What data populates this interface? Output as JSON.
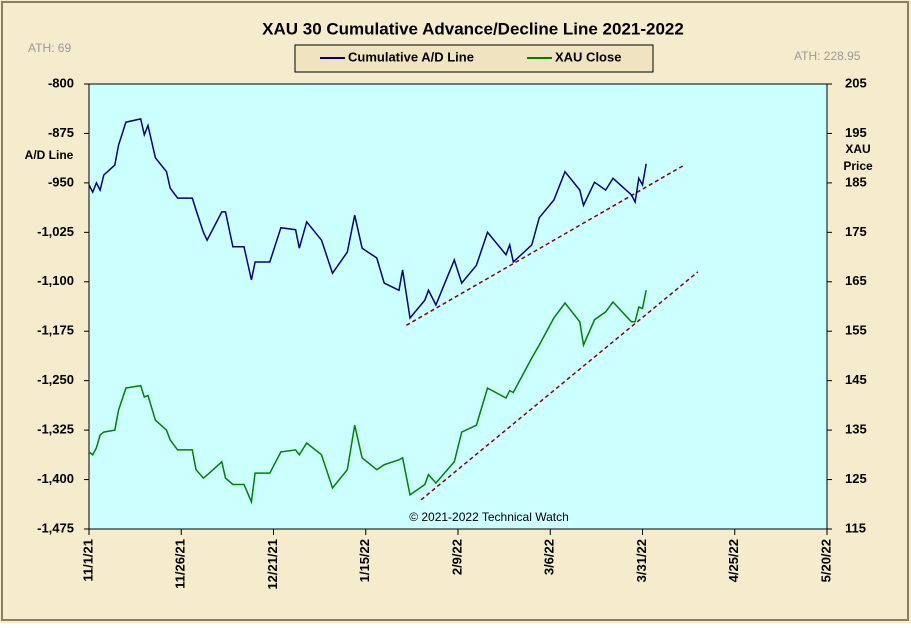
{
  "chart_data": {
    "type": "line",
    "title": "XAU 30 Cumulative  Advance/Decline  Line  2021-2022",
    "ylabel": "A/D Line",
    "y2label": [
      "XAU",
      "Price"
    ],
    "annotations": [
      "ATH: 69",
      "ATH: 228.95",
      "© 2021-2022  Technical  Watch"
    ],
    "x": [
      "11/1/21",
      "11/2/21",
      "11/3/21",
      "11/4/21",
      "11/5/21",
      "11/8/21",
      "11/9/21",
      "11/11/21",
      "11/15/21",
      "11/16/21",
      "11/17/21",
      "11/19/21",
      "11/22/21",
      "11/23/21",
      "11/25/21",
      "11/29/21",
      "11/30/21",
      "12/2/21",
      "12/3/21",
      "12/7/21",
      "12/8/21",
      "12/10/21",
      "12/13/21",
      "12/15/21",
      "12/16/21",
      "12/20/21",
      "12/23/21",
      "12/27/21",
      "12/28/21",
      "12/30/21",
      "1/3/22",
      "1/6/22",
      "1/10/22",
      "1/12/22",
      "1/14/22",
      "1/18/22",
      "1/20/22",
      "1/24/22",
      "1/25/22",
      "1/27/22",
      "1/31/22",
      "2/1/22",
      "2/3/22",
      "2/8/22",
      "2/10/22",
      "2/14/22",
      "2/17/22",
      "2/22/22",
      "2/23/22",
      "2/24/22",
      "3/1/22",
      "3/3/22",
      "3/7/22",
      "3/10/22",
      "3/14/22",
      "3/15/22",
      "3/18/22",
      "3/21/22",
      "3/23/22",
      "3/28/22",
      "3/29/22",
      "3/30/22",
      "3/31/22",
      "4/1/22"
    ],
    "series": [
      {
        "name": "Cumulative A/D Line",
        "color": "#000080",
        "axis": "y",
        "values": [
          -953,
          -964,
          -950,
          -961,
          -938,
          -923,
          -893,
          -858,
          -853,
          -877,
          -863,
          -912,
          -933,
          -958,
          -973,
          -973,
          -991,
          -1025,
          -1037,
          -994,
          -994,
          -1047,
          -1047,
          -1097,
          -1070,
          -1070,
          -1018,
          -1021,
          -1049,
          -1009,
          -1037,
          -1087,
          -1055,
          -999,
          -1049,
          -1064,
          -1102,
          -1113,
          -1082,
          -1155,
          -1128,
          -1113,
          -1135,
          -1067,
          -1102,
          -1075,
          -1025,
          -1059,
          -1044,
          -1070,
          -1044,
          -1003,
          -976,
          -933,
          -961,
          -984,
          -949,
          -961,
          -943,
          -968,
          -979,
          -943,
          -953,
          -921
        ]
      },
      {
        "name": "XAU Close",
        "color": "#008000",
        "axis": "y2",
        "values": [
          130.6,
          130,
          131.4,
          134,
          134.6,
          135,
          139,
          143.5,
          144,
          141.7,
          142,
          137,
          135,
          133,
          131,
          131,
          127,
          125.3,
          125.9,
          128.6,
          125.3,
          124,
          124,
          120.5,
          126.3,
          126.3,
          130.6,
          131,
          130,
          132.4,
          130,
          123.3,
          127,
          136,
          129.4,
          127,
          128,
          129,
          129.4,
          121.9,
          124,
          126,
          124.3,
          128.6,
          134.6,
          136,
          143.5,
          141.5,
          143,
          142.6,
          149.6,
          152.2,
          157.7,
          160.7,
          156.9,
          152.2,
          157.3,
          158.9,
          160.9,
          156.9,
          156.9,
          159.9,
          159.6,
          163.3
        ]
      }
    ],
    "trendlines": [
      {
        "axis": "y",
        "color": "#8b0000",
        "x": [
          "1/26/22",
          "4/11/22"
        ],
        "values": [
          -1166,
          -924
        ]
      },
      {
        "axis": "y2",
        "color": "#8b0000",
        "x": [
          "1/30/22",
          "4/15/22"
        ],
        "values": [
          120.9,
          167
        ]
      }
    ],
    "xlim": [
      "11/1/21",
      "5/20/22"
    ],
    "xticks": [
      "11/1/21",
      "11/26/21",
      "12/21/21",
      "1/15/22",
      "2/9/22",
      "3/6/22",
      "3/31/22",
      "4/25/22",
      "5/20/22"
    ],
    "ylim": [
      -1475,
      -800
    ],
    "yticks": [
      -800,
      -875,
      -950,
      {
        "value": -1025,
        "label": "-1,025"
      },
      {
        "value": -1100,
        "label": "-1,100"
      },
      {
        "value": -1175,
        "label": "-1,175"
      },
      {
        "value": -1250,
        "label": "-1,250"
      },
      {
        "value": -1325,
        "label": "-1,325"
      },
      {
        "value": -1400,
        "label": "-1,400"
      },
      {
        "value": -1475,
        "label": "-1,475"
      }
    ],
    "y2lim": [
      115,
      205
    ],
    "y2ticks": [
      205,
      195,
      185,
      175,
      165,
      155,
      145,
      135,
      125,
      115
    ],
    "legend": "top"
  }
}
